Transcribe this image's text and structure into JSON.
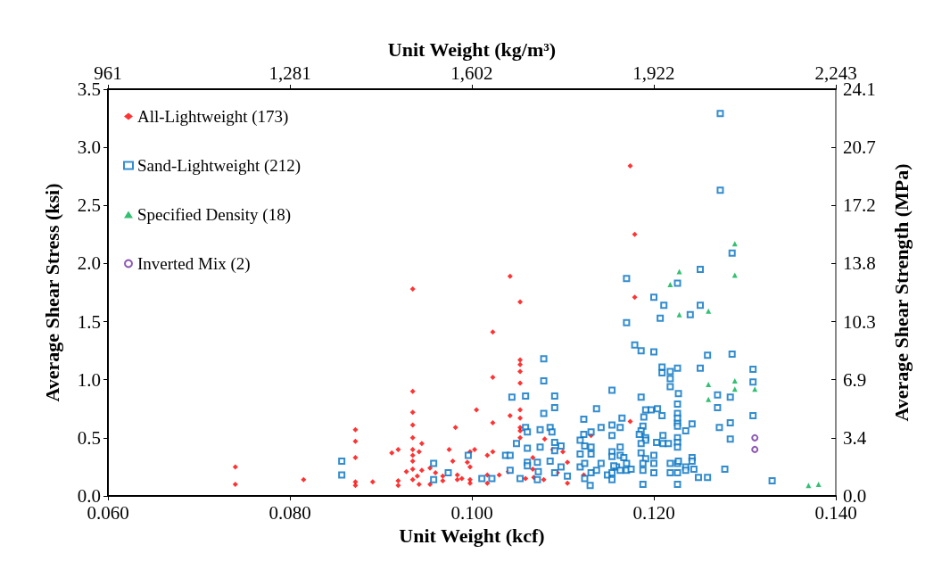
{
  "chart_data": {
    "type": "scatter",
    "xlabel": "Unit Weight (kcf)",
    "ylabel": "Average Shear Stress (ksi)",
    "x2label": "Unit Weight (kg/m³)",
    "y2label": "Average Shear Strength (MPa)",
    "xlim": [
      0.06,
      0.14
    ],
    "xticks": [
      {
        "value": 0.06,
        "label": "0.060"
      },
      {
        "value": 0.08,
        "label": "0.080"
      },
      {
        "value": 0.1,
        "label": "0.100"
      },
      {
        "value": 0.12,
        "label": "0.120"
      },
      {
        "value": 0.14,
        "label": "0.140"
      }
    ],
    "ylim": [
      0,
      3.5
    ],
    "yticks": [
      {
        "value": 0,
        "label": "0.0"
      },
      {
        "value": 0.5,
        "label": "0.5"
      },
      {
        "value": 1,
        "label": "1.0"
      },
      {
        "value": 1.5,
        "label": "1.5"
      },
      {
        "value": 2,
        "label": "2.0"
      },
      {
        "value": 2.5,
        "label": "2.5"
      },
      {
        "value": 3,
        "label": "3.0"
      },
      {
        "value": 3.5,
        "label": "3.5"
      }
    ],
    "x2lim": [
      961.1,
      2242.6
    ],
    "x2ticks": [
      {
        "value": 961.1,
        "label": "961"
      },
      {
        "value": 1281.5,
        "label": "1,281"
      },
      {
        "value": 1601.8,
        "label": "1,602"
      },
      {
        "value": 1922.2,
        "label": "1,922"
      },
      {
        "value": 2242.6,
        "label": "2,243"
      }
    ],
    "y2lim": [
      0,
      24.132
    ],
    "y2ticks": [
      {
        "value": 0,
        "label": "0.0"
      },
      {
        "value": 3.447,
        "label": "3.4"
      },
      {
        "value": 6.895,
        "label": "6.9"
      },
      {
        "value": 10.342,
        "label": "10.3"
      },
      {
        "value": 13.79,
        "label": "13.8"
      },
      {
        "value": 17.237,
        "label": "17.2"
      },
      {
        "value": 20.684,
        "label": "20.7"
      },
      {
        "value": 24.132,
        "label": "24.1"
      }
    ],
    "grid": false,
    "legend": "top left",
    "series": [
      {
        "name": "All-Lightweight (173)",
        "color": "#ff0000",
        "marker": "diamond",
        "x": [
          0.074,
          0.074,
          0.0815,
          0.0872,
          0.0872,
          0.0872,
          0.0872,
          0.0872,
          0.0891,
          0.0912,
          0.0919,
          0.0919,
          0.0919,
          0.0935,
          0.0935,
          0.0935,
          0.0935,
          0.0935,
          0.0935,
          0.0935,
          0.0935,
          0.0935,
          0.0935,
          0.0942,
          0.0945,
          0.0945,
          0.0942,
          0.094,
          0.0928,
          0.0954,
          0.0954,
          0.096,
          0.0968,
          0.0968,
          0.0975,
          0.0979,
          0.0982,
          0.0984,
          0.0984,
          0.0989,
          0.0995,
          0.0998,
          0.0998,
          0.0998,
          0.0998,
          0.1003,
          0.1005,
          0.1017,
          0.1017,
          0.1017,
          0.1023,
          0.1023,
          0.1023,
          0.1023,
          0.103,
          0.104,
          0.1042,
          0.1042,
          0.1053,
          0.1053,
          0.1053,
          0.1053,
          0.1053,
          0.1053,
          0.1053,
          0.1053,
          0.1053,
          0.1053,
          0.1059,
          0.1067,
          0.1067,
          0.1068,
          0.1079,
          0.108,
          0.1089,
          0.11,
          0.1105,
          0.1105,
          0.1094,
          0.1123,
          0.1131,
          0.1174,
          0.1179,
          0.1179,
          0.1174
        ],
        "values": [
          0.25,
          0.1,
          0.14,
          0.57,
          0.47,
          0.33,
          0.12,
          0.09,
          0.12,
          0.37,
          0.4,
          0.13,
          0.09,
          1.78,
          0.9,
          0.72,
          0.61,
          0.5,
          0.4,
          0.35,
          0.3,
          0.23,
          0.14,
          0.38,
          0.45,
          0.22,
          0.1,
          0.17,
          0.21,
          0.24,
          0.1,
          0.2,
          0.17,
          0.13,
          0.4,
          0.3,
          0.59,
          0.18,
          0.14,
          0.15,
          0.29,
          0.38,
          0.25,
          0.14,
          0.11,
          0.4,
          0.74,
          0.35,
          0.18,
          0.11,
          0.38,
          1.41,
          1.02,
          0.63,
          0.18,
          0.21,
          1.89,
          0.69,
          1.67,
          1.17,
          1.13,
          1.07,
          0.97,
          0.74,
          0.67,
          0.59,
          0.56,
          0.5,
          0.15,
          0.33,
          0.23,
          0.16,
          0.14,
          0.49,
          0.4,
          0.38,
          0.29,
          0.11,
          0.2,
          0.18,
          0.52,
          2.84,
          2.25,
          1.71,
          0.64
        ]
      },
      {
        "name": "Sand-Lightweight (212)",
        "color": "#0070c0",
        "marker": "square",
        "x": [
          0.0857,
          0.0857,
          0.0958,
          0.0958,
          0.0974,
          0.0996,
          0.1011,
          0.1022,
          0.1037,
          0.1042,
          0.1042,
          0.1044,
          0.1049,
          0.1053,
          0.1059,
          0.1059,
          0.1061,
          0.1061,
          0.1061,
          0.1061,
          0.1072,
          0.1072,
          0.1073,
          0.1075,
          0.1075,
          0.1079,
          0.1079,
          0.1079,
          0.1086,
          0.1088,
          0.1086,
          0.1091,
          0.1091,
          0.1091,
          0.1091,
          0.1091,
          0.1098,
          0.1098,
          0.1105,
          0.1119,
          0.1119,
          0.1119,
          0.1123,
          0.1123,
          0.1124,
          0.1124,
          0.1124,
          0.1131,
          0.1131,
          0.1131,
          0.1131,
          0.113,
          0.1137,
          0.1137,
          0.1142,
          0.1142,
          0.1149,
          0.1154,
          0.1154,
          0.1154,
          0.1154,
          0.1154,
          0.1154,
          0.1154,
          0.1159,
          0.1179,
          0.1186,
          0.12,
          0.1209,
          0.1209,
          0.1218,
          0.1218,
          0.1218,
          0.1226,
          0.1227,
          0.1226,
          0.1259,
          0.1286,
          0.1309,
          0.1309,
          0.1251,
          0.127,
          0.127,
          0.1284,
          0.1309,
          0.1284,
          0.1272,
          0.1284,
          0.1242,
          0.1235,
          0.1226,
          0.1226,
          0.1226,
          0.1226,
          0.1204,
          0.1197,
          0.1191,
          0.1189,
          0.1209,
          0.1186,
          0.1165,
          0.1163,
          0.1188,
          0.1186,
          0.1184,
          0.1191,
          0.1191,
          0.1186,
          0.1203,
          0.121,
          0.121,
          0.1216,
          0.1226,
          0.1226,
          0.1226,
          0.1186,
          0.1191,
          0.1163,
          0.1163,
          0.1167,
          0.1156,
          0.117,
          0.117,
          0.1163,
          0.1175,
          0.1188,
          0.1188,
          0.12,
          0.12,
          0.12,
          0.1188,
          0.1218,
          0.1218,
          0.1226,
          0.1226,
          0.1226,
          0.1227,
          0.1235,
          0.1235,
          0.1242,
          0.1242,
          0.1244,
          0.1249,
          0.1259,
          0.1278,
          0.133,
          0.1273,
          0.1273,
          0.1286,
          0.1251,
          0.117,
          0.1226,
          0.12,
          0.1211,
          0.1251,
          0.1207,
          0.124,
          0.117
        ],
        "values": [
          0.3,
          0.18,
          0.28,
          0.14,
          0.2,
          0.35,
          0.15,
          0.15,
          0.35,
          0.35,
          0.22,
          0.85,
          0.45,
          0.15,
          0.86,
          0.59,
          0.55,
          0.41,
          0.29,
          0.26,
          0.29,
          0.14,
          0.21,
          0.57,
          0.42,
          1.18,
          0.99,
          0.71,
          0.59,
          0.55,
          0.3,
          0.86,
          0.76,
          0.46,
          0.39,
          0.2,
          0.43,
          0.25,
          0.17,
          0.48,
          0.36,
          0.25,
          0.66,
          0.53,
          0.43,
          0.28,
          0.15,
          0.55,
          0.42,
          0.36,
          0.2,
          0.09,
          0.75,
          0.22,
          0.59,
          0.28,
          0.18,
          0.91,
          0.61,
          0.52,
          0.38,
          0.34,
          0.2,
          0.14,
          0.25,
          1.3,
          1.25,
          1.24,
          1.11,
          1.06,
          1.07,
          1.01,
          0.94,
          1.1,
          0.88,
          0.79,
          1.21,
          1.22,
          1.09,
          0.98,
          1.1,
          0.87,
          0.76,
          0.85,
          0.69,
          0.63,
          0.59,
          0.49,
          0.62,
          0.56,
          0.71,
          0.63,
          0.6,
          0.67,
          0.75,
          0.74,
          0.74,
          0.68,
          0.69,
          0.85,
          0.67,
          0.59,
          0.6,
          0.56,
          0.53,
          0.5,
          0.48,
          0.45,
          0.46,
          0.52,
          0.45,
          0.45,
          0.5,
          0.46,
          0.42,
          0.37,
          0.32,
          0.42,
          0.35,
          0.33,
          0.26,
          0.28,
          0.22,
          0.22,
          0.23,
          0.28,
          0.22,
          0.35,
          0.28,
          0.2,
          0.1,
          0.28,
          0.2,
          0.28,
          0.2,
          0.1,
          0.3,
          0.25,
          0.22,
          0.33,
          0.3,
          0.23,
          0.16,
          0.16,
          0.23,
          0.13,
          3.29,
          2.63,
          2.09,
          1.95,
          1.87,
          1.83,
          1.71,
          1.64,
          1.64,
          1.53,
          1.56,
          1.49
        ]
      },
      {
        "name": "Specified Density (18)",
        "color": "#00b050",
        "marker": "triangle",
        "x": [
          0.1289,
          0.1289,
          0.1228,
          0.1218,
          0.1228,
          0.126,
          0.126,
          0.126,
          0.1289,
          0.1289,
          0.1311,
          0.137,
          0.1381
        ],
        "values": [
          2.17,
          1.9,
          1.93,
          1.82,
          1.56,
          1.59,
          0.96,
          0.83,
          0.99,
          0.92,
          0.92,
          0.09,
          0.1
        ]
      },
      {
        "name": "Inverted Mix (2)",
        "color": "#7030a0",
        "marker": "circle",
        "x": [
          0.1311,
          0.1311
        ],
        "values": [
          0.5,
          0.4
        ]
      }
    ]
  }
}
